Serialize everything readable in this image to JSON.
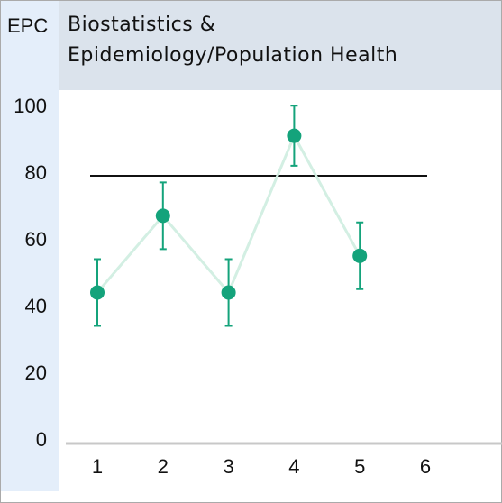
{
  "chart_data": {
    "type": "line",
    "corner_label": "EPC",
    "title": [
      "Biostatistics &",
      "Epidemiology/Population Health"
    ],
    "categories": [
      "1",
      "2",
      "3",
      "4",
      "5",
      "6"
    ],
    "series": [
      {
        "color": "#14a37b",
        "line_color": "#d3efe3",
        "values": [
          45,
          68,
          45,
          92,
          56,
          null
        ],
        "errors": [
          10,
          10,
          10,
          9,
          10,
          null
        ]
      }
    ],
    "reference_line": {
      "value": 80,
      "color": "#111111"
    },
    "ylim": [
      0,
      100
    ],
    "yticks": [
      0,
      20,
      40,
      60,
      80,
      100
    ]
  }
}
